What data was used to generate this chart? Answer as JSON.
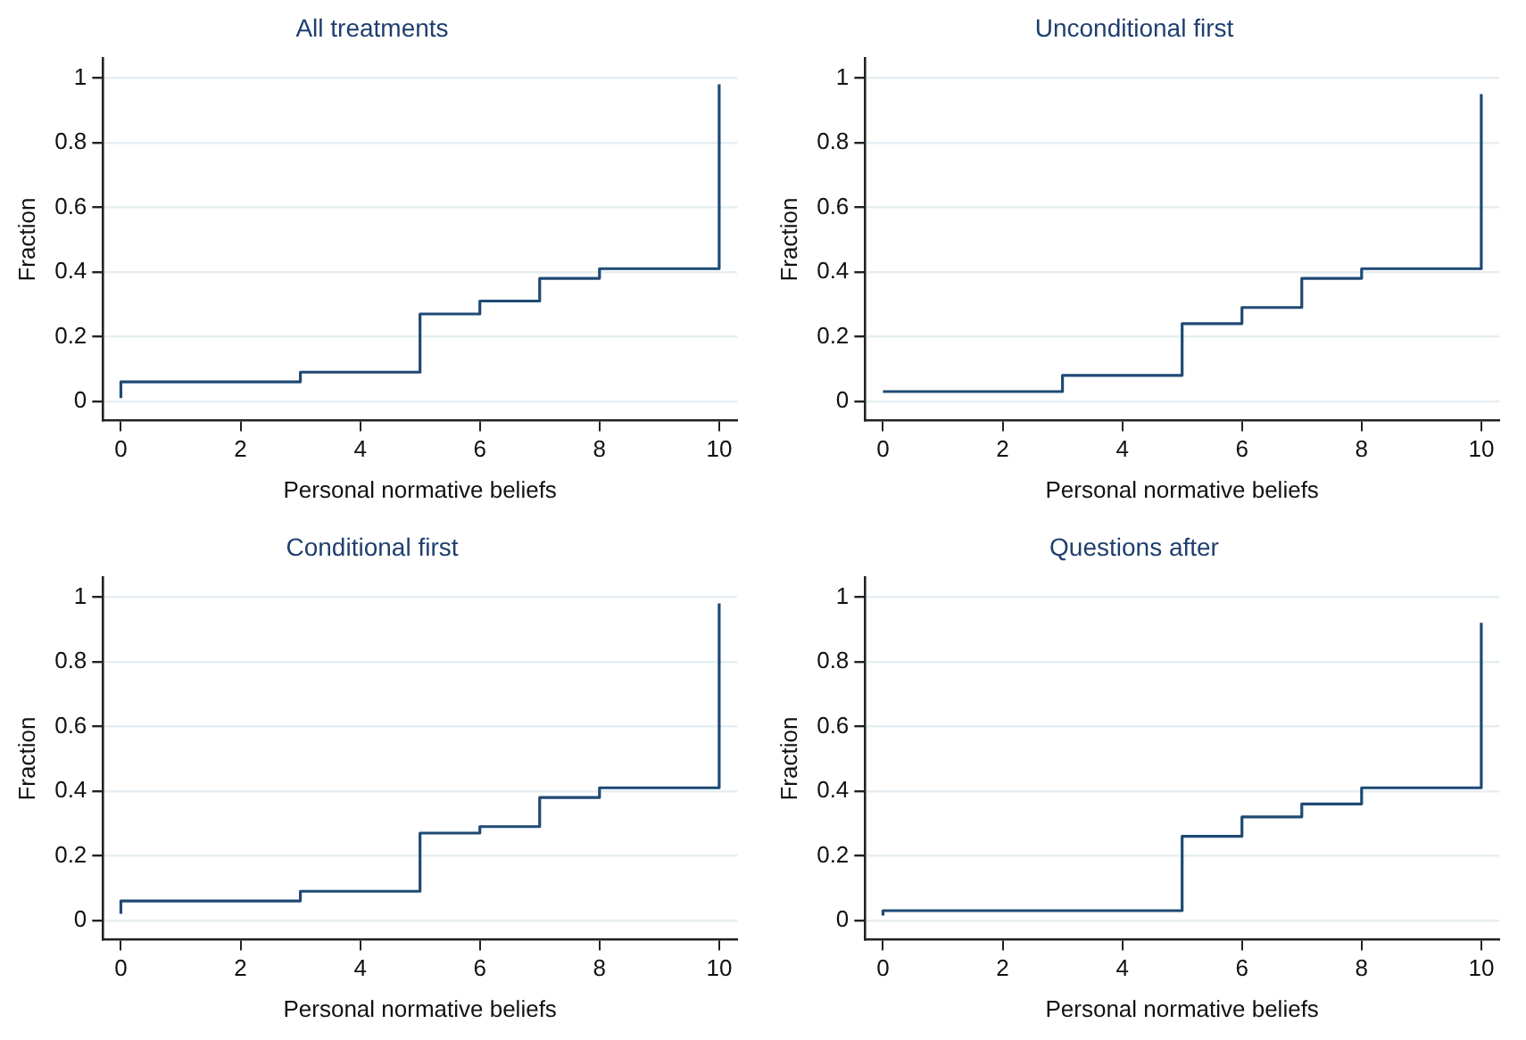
{
  "chart_data": [
    {
      "type": "step",
      "title": "All treatments",
      "xlabel": "Personal normative beliefs",
      "ylabel": "Fraction",
      "color": "#1f4a74",
      "x": [
        0,
        0,
        3,
        5,
        6,
        7,
        8,
        10
      ],
      "values": [
        0.01,
        0.06,
        0.09,
        0.27,
        0.31,
        0.38,
        0.41,
        0.98
      ],
      "xlim": [
        -0.3,
        10.3
      ],
      "ylim": [
        -0.06,
        1.06
      ],
      "xticks": [
        0,
        2,
        4,
        6,
        8,
        10
      ],
      "yticks": [
        0,
        0.2,
        0.4,
        0.6,
        0.8,
        1
      ],
      "grid": "y",
      "legend": false
    },
    {
      "type": "step",
      "title": "Unconditional first",
      "xlabel": "Personal normative beliefs",
      "ylabel": "Fraction",
      "color": "#1f4a74",
      "x": [
        0,
        3,
        5,
        6,
        7,
        8,
        10
      ],
      "values": [
        0.03,
        0.08,
        0.24,
        0.29,
        0.38,
        0.41,
        0.95
      ],
      "xlim": [
        -0.3,
        10.3
      ],
      "ylim": [
        -0.06,
        1.06
      ],
      "xticks": [
        0,
        2,
        4,
        6,
        8,
        10
      ],
      "yticks": [
        0,
        0.2,
        0.4,
        0.6,
        0.8,
        1
      ],
      "grid": "y",
      "legend": false
    },
    {
      "type": "step",
      "title": "Conditional first",
      "xlabel": "Personal normative beliefs",
      "ylabel": "Fraction",
      "color": "#1f4a74",
      "x": [
        0,
        0,
        3,
        5,
        6,
        7,
        8,
        10
      ],
      "values": [
        0.02,
        0.06,
        0.09,
        0.27,
        0.29,
        0.38,
        0.41,
        0.98
      ],
      "xlim": [
        -0.3,
        10.3
      ],
      "ylim": [
        -0.06,
        1.06
      ],
      "xticks": [
        0,
        2,
        4,
        6,
        8,
        10
      ],
      "yticks": [
        0,
        0.2,
        0.4,
        0.6,
        0.8,
        1
      ],
      "grid": "y",
      "legend": false
    },
    {
      "type": "step",
      "title": "Questions after",
      "xlabel": "Personal normative beliefs",
      "ylabel": "Fraction",
      "color": "#1f4a74",
      "x": [
        0,
        0,
        5,
        6,
        7,
        8,
        10
      ],
      "values": [
        0.015,
        0.03,
        0.26,
        0.32,
        0.36,
        0.41,
        0.92
      ],
      "xlim": [
        -0.3,
        10.3
      ],
      "ylim": [
        -0.06,
        1.06
      ],
      "xticks": [
        0,
        2,
        4,
        6,
        8,
        10
      ],
      "yticks": [
        0,
        0.2,
        0.4,
        0.6,
        0.8,
        1
      ],
      "grid": "y",
      "legend": false
    }
  ]
}
